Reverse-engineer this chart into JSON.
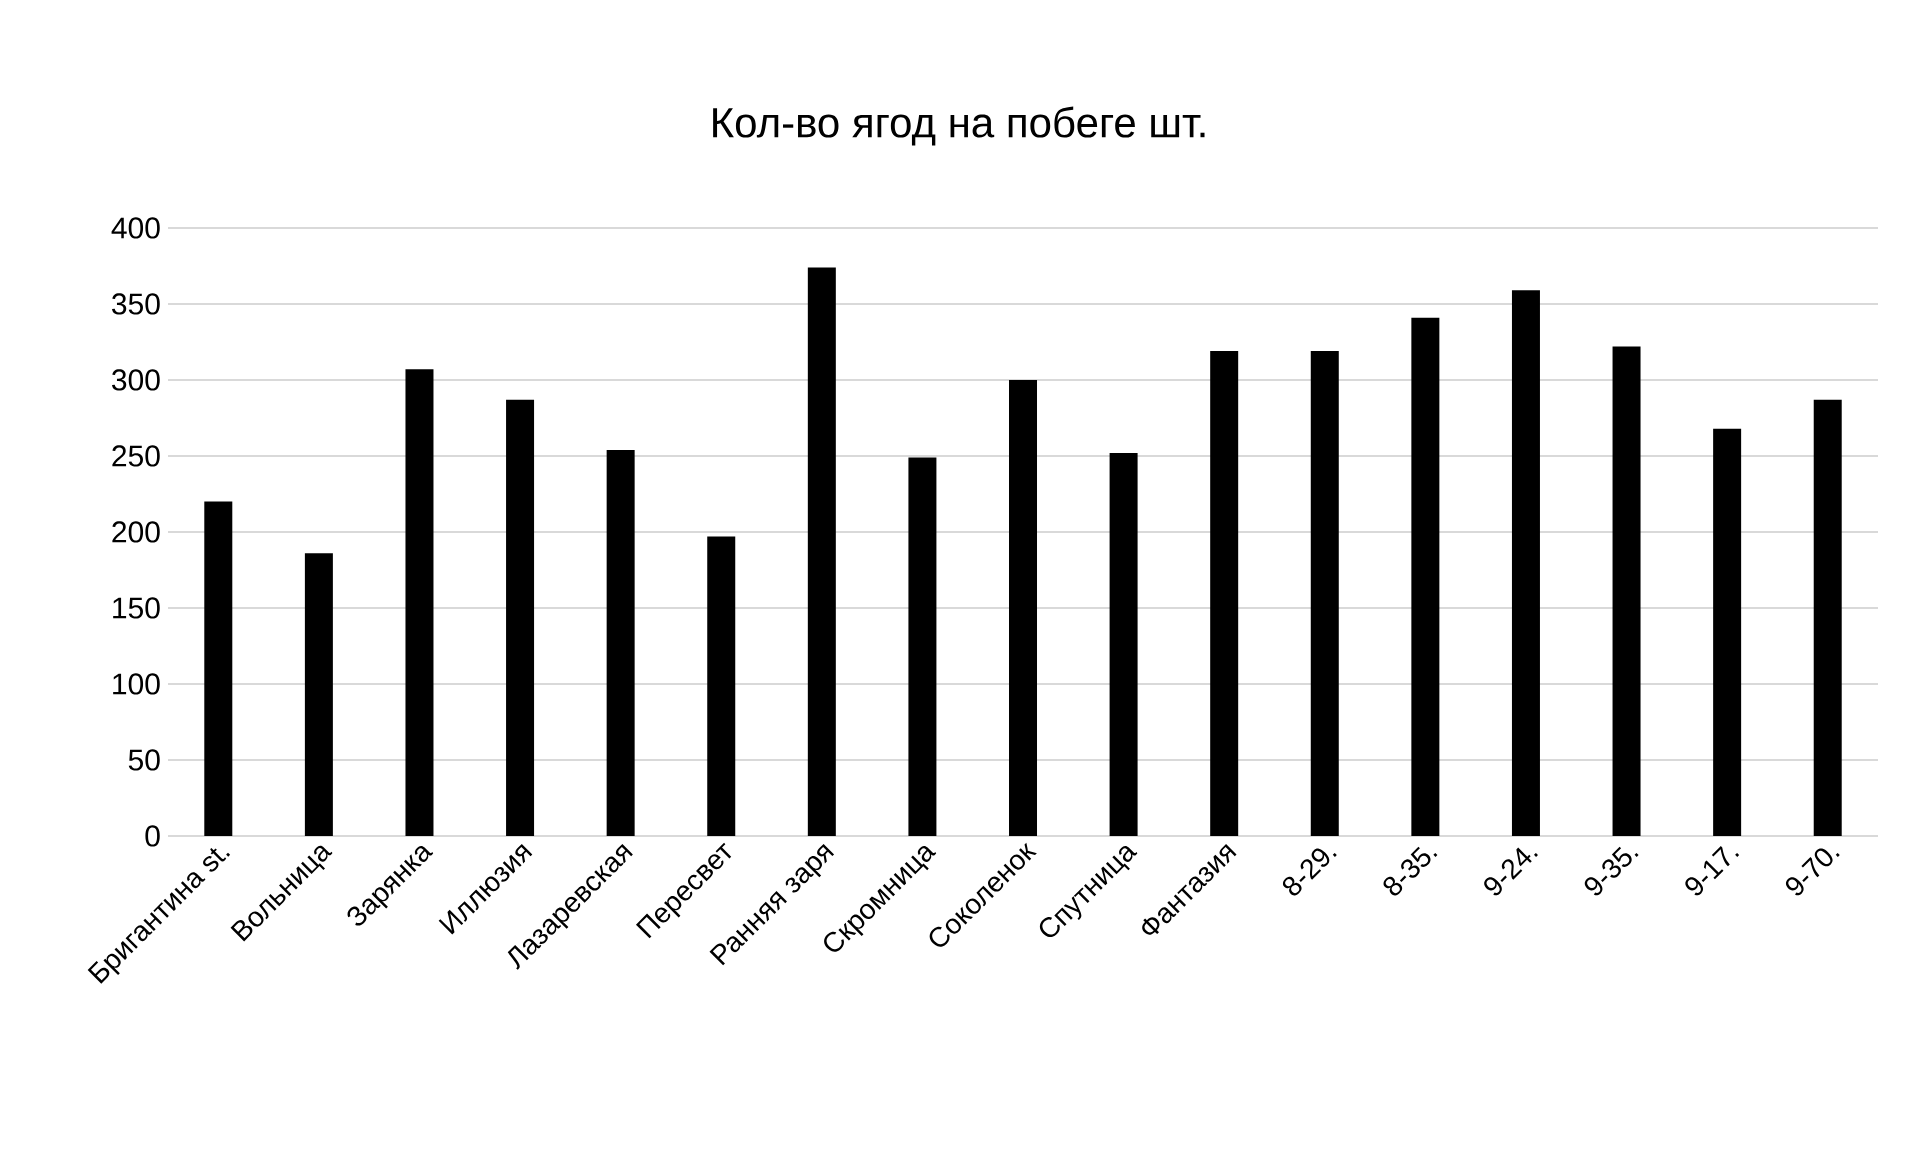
{
  "chart_data": {
    "type": "bar",
    "title": "Кол-во ягод на побеге шт.",
    "categories": [
      "Бригантина st.",
      "Вольница",
      "Зарянка",
      "Иллюзия",
      "Лазаревская",
      "Пересвет",
      "Ранняя заря",
      "Скромница",
      "Соколенок",
      "Спутница",
      "Фантазия",
      "8-29.",
      "8-35.",
      "9-24.",
      "9-35.",
      "9-17.",
      "9-70."
    ],
    "values": [
      220,
      186,
      307,
      287,
      254,
      197,
      374,
      249,
      300,
      252,
      319,
      319,
      341,
      359,
      322,
      268,
      287
    ],
    "color": "#000000",
    "ylim": [
      0,
      400
    ],
    "yticks": [
      0,
      50,
      100,
      150,
      200,
      250,
      300,
      350,
      400
    ],
    "grid": "y"
  }
}
